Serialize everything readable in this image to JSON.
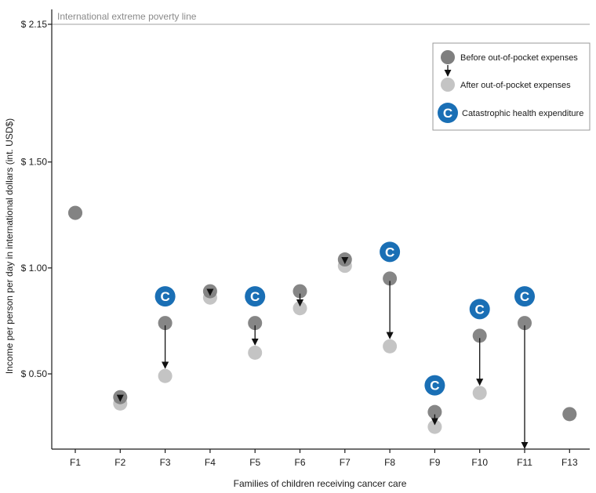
{
  "chart_data": {
    "type": "scatter",
    "title": "",
    "xlabel": "Families of children receiving cancer care",
    "ylabel": "Income per person per day in international dollars (int. USD$)",
    "categories": [
      "F1",
      "F2",
      "F3",
      "F4",
      "F5",
      "F6",
      "F7",
      "F8",
      "F9",
      "F10",
      "F11",
      "F13"
    ],
    "ytick_labels": [
      "$ 0.50",
      "$ 1.00",
      "$ 1.50",
      "$ 2.15"
    ],
    "yticks": [
      0.5,
      1.0,
      1.5,
      2.15
    ],
    "ylim": [
      0.15,
      2.15
    ],
    "reference_line": {
      "value": 2.15,
      "label": "International extreme poverty line"
    },
    "series": [
      {
        "name": "Before out-of-pocket expenses",
        "color": "#7f7f7f",
        "values": [
          1.26,
          0.39,
          0.74,
          0.89,
          0.74,
          0.89,
          1.04,
          0.95,
          0.32,
          0.68,
          0.74,
          0.31
        ]
      },
      {
        "name": "After out-of-pocket expenses",
        "color": "#c4c4c4",
        "values": [
          1.26,
          0.36,
          0.49,
          0.86,
          0.6,
          0.81,
          1.01,
          0.63,
          0.25,
          0.41,
          0.15,
          0.31
        ]
      }
    ],
    "catastrophic_health_expenditure": [
      false,
      false,
      true,
      false,
      true,
      false,
      false,
      true,
      true,
      true,
      true,
      false
    ],
    "legend": {
      "position": "top-right",
      "items": [
        {
          "label": "Before out-of-pocket expenses",
          "icon": "circle-dark-with-down-arrow"
        },
        {
          "label": "After out-of-pocket expenses",
          "icon": "circle-light"
        },
        {
          "label": "Catastrophic health expenditure",
          "icon": "c-badge-blue"
        }
      ]
    },
    "badge_letter": "C",
    "colors": {
      "before": "#7f7f7f",
      "after": "#c4c4c4",
      "badge": "#1a6fb5",
      "reference": "#b3b3b3"
    },
    "grid": false
  }
}
